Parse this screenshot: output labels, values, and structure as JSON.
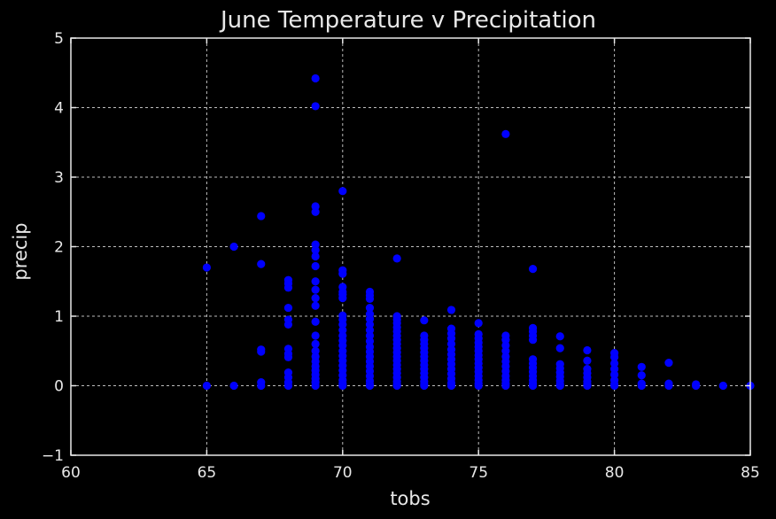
{
  "chart_data": {
    "type": "scatter",
    "title": "June Temperature v Precipitation",
    "xlabel": "tobs",
    "ylabel": "precip",
    "xlim": [
      60,
      85
    ],
    "ylim": [
      -1,
      5
    ],
    "xticks": [
      "60",
      "65",
      "70",
      "75",
      "80",
      "85"
    ],
    "yticks": [
      "−1",
      "0",
      "1",
      "2",
      "3",
      "4",
      "5"
    ],
    "grid": true,
    "marker_color": "#0000ff",
    "background": "#000000",
    "points": [
      [
        65,
        1.7
      ],
      [
        65,
        0.0
      ],
      [
        66,
        2.0
      ],
      [
        66,
        0.0
      ],
      [
        67,
        2.44
      ],
      [
        67,
        1.75
      ],
      [
        67,
        0.52
      ],
      [
        67,
        0.49
      ],
      [
        67,
        0.05
      ],
      [
        67,
        0.0
      ],
      [
        68,
        1.52
      ],
      [
        68,
        1.47
      ],
      [
        68,
        1.41
      ],
      [
        68,
        1.12
      ],
      [
        68,
        0.95
      ],
      [
        68,
        0.88
      ],
      [
        68,
        0.53
      ],
      [
        68,
        0.46
      ],
      [
        68,
        0.41
      ],
      [
        68,
        0.19
      ],
      [
        68,
        0.12
      ],
      [
        68,
        0.05
      ],
      [
        68,
        0.0
      ],
      [
        69,
        4.42
      ],
      [
        69,
        4.02
      ],
      [
        69,
        2.58
      ],
      [
        69,
        2.5
      ],
      [
        69,
        2.03
      ],
      [
        69,
        1.95
      ],
      [
        69,
        1.86
      ],
      [
        69,
        1.72
      ],
      [
        69,
        1.5
      ],
      [
        69,
        1.38
      ],
      [
        69,
        1.26
      ],
      [
        69,
        1.15
      ],
      [
        69,
        0.92
      ],
      [
        69,
        0.72
      ],
      [
        69,
        0.6
      ],
      [
        69,
        0.5
      ],
      [
        69,
        0.42
      ],
      [
        69,
        0.35
      ],
      [
        69,
        0.28
      ],
      [
        69,
        0.22
      ],
      [
        69,
        0.16
      ],
      [
        69,
        0.1
      ],
      [
        69,
        0.05
      ],
      [
        69,
        0.0
      ],
      [
        70,
        2.8
      ],
      [
        70,
        1.66
      ],
      [
        70,
        1.61
      ],
      [
        70,
        1.42
      ],
      [
        70,
        1.35
      ],
      [
        70,
        1.31
      ],
      [
        70,
        1.26
      ],
      [
        70,
        1.01
      ],
      [
        70,
        0.95
      ],
      [
        70,
        0.88
      ],
      [
        70,
        0.8
      ],
      [
        70,
        0.72
      ],
      [
        70,
        0.65
      ],
      [
        70,
        0.58
      ],
      [
        70,
        0.5
      ],
      [
        70,
        0.43
      ],
      [
        70,
        0.36
      ],
      [
        70,
        0.29
      ],
      [
        70,
        0.22
      ],
      [
        70,
        0.15
      ],
      [
        70,
        0.08
      ],
      [
        70,
        0.03
      ],
      [
        70,
        0.0
      ],
      [
        71,
        1.35
      ],
      [
        71,
        1.3
      ],
      [
        71,
        1.25
      ],
      [
        71,
        1.12
      ],
      [
        71,
        1.03
      ],
      [
        71,
        0.96
      ],
      [
        71,
        0.88
      ],
      [
        71,
        0.8
      ],
      [
        71,
        0.72
      ],
      [
        71,
        0.64
      ],
      [
        71,
        0.56
      ],
      [
        71,
        0.49
      ],
      [
        71,
        0.42
      ],
      [
        71,
        0.35
      ],
      [
        71,
        0.28
      ],
      [
        71,
        0.21
      ],
      [
        71,
        0.14
      ],
      [
        71,
        0.07
      ],
      [
        71,
        0.02
      ],
      [
        71,
        0.0
      ],
      [
        72,
        1.83
      ],
      [
        72,
        1.0
      ],
      [
        72,
        0.95
      ],
      [
        72,
        0.9
      ],
      [
        72,
        0.84
      ],
      [
        72,
        0.78
      ],
      [
        72,
        0.72
      ],
      [
        72,
        0.66
      ],
      [
        72,
        0.6
      ],
      [
        72,
        0.54
      ],
      [
        72,
        0.48
      ],
      [
        72,
        0.42
      ],
      [
        72,
        0.36
      ],
      [
        72,
        0.3
      ],
      [
        72,
        0.24
      ],
      [
        72,
        0.18
      ],
      [
        72,
        0.12
      ],
      [
        72,
        0.06
      ],
      [
        72,
        0.02
      ],
      [
        72,
        0.0
      ],
      [
        73,
        0.94
      ],
      [
        73,
        0.72
      ],
      [
        73,
        0.66
      ],
      [
        73,
        0.6
      ],
      [
        73,
        0.54
      ],
      [
        73,
        0.48
      ],
      [
        73,
        0.42
      ],
      [
        73,
        0.36
      ],
      [
        73,
        0.3
      ],
      [
        73,
        0.24
      ],
      [
        73,
        0.18
      ],
      [
        73,
        0.12
      ],
      [
        73,
        0.06
      ],
      [
        73,
        0.02
      ],
      [
        73,
        0.0
      ],
      [
        74,
        1.09
      ],
      [
        74,
        0.82
      ],
      [
        74,
        0.75
      ],
      [
        74,
        0.68
      ],
      [
        74,
        0.6
      ],
      [
        74,
        0.52
      ],
      [
        74,
        0.45
      ],
      [
        74,
        0.38
      ],
      [
        74,
        0.31
      ],
      [
        74,
        0.24
      ],
      [
        74,
        0.17
      ],
      [
        74,
        0.1
      ],
      [
        74,
        0.04
      ],
      [
        74,
        0.0
      ],
      [
        75,
        0.9
      ],
      [
        75,
        0.74
      ],
      [
        75,
        0.68
      ],
      [
        75,
        0.62
      ],
      [
        75,
        0.56
      ],
      [
        75,
        0.5
      ],
      [
        75,
        0.44
      ],
      [
        75,
        0.38
      ],
      [
        75,
        0.32
      ],
      [
        75,
        0.26
      ],
      [
        75,
        0.2
      ],
      [
        75,
        0.14
      ],
      [
        75,
        0.08
      ],
      [
        75,
        0.03
      ],
      [
        75,
        0.0
      ],
      [
        76,
        3.62
      ],
      [
        76,
        0.72
      ],
      [
        76,
        0.66
      ],
      [
        76,
        0.58
      ],
      [
        76,
        0.5
      ],
      [
        76,
        0.42
      ],
      [
        76,
        0.35
      ],
      [
        76,
        0.28
      ],
      [
        76,
        0.21
      ],
      [
        76,
        0.14
      ],
      [
        76,
        0.08
      ],
      [
        76,
        0.03
      ],
      [
        76,
        0.0
      ],
      [
        77,
        1.68
      ],
      [
        77,
        0.83
      ],
      [
        77,
        0.78
      ],
      [
        77,
        0.72
      ],
      [
        77,
        0.66
      ],
      [
        77,
        0.38
      ],
      [
        77,
        0.32
      ],
      [
        77,
        0.26
      ],
      [
        77,
        0.2
      ],
      [
        77,
        0.14
      ],
      [
        77,
        0.08
      ],
      [
        77,
        0.03
      ],
      [
        77,
        0.0
      ],
      [
        78,
        0.71
      ],
      [
        78,
        0.54
      ],
      [
        78,
        0.31
      ],
      [
        78,
        0.25
      ],
      [
        78,
        0.19
      ],
      [
        78,
        0.13
      ],
      [
        78,
        0.07
      ],
      [
        78,
        0.02
      ],
      [
        78,
        0.0
      ],
      [
        79,
        0.51
      ],
      [
        79,
        0.36
      ],
      [
        79,
        0.24
      ],
      [
        79,
        0.18
      ],
      [
        79,
        0.12
      ],
      [
        79,
        0.06
      ],
      [
        79,
        0.02
      ],
      [
        79,
        0.0
      ],
      [
        80,
        0.47
      ],
      [
        80,
        0.41
      ],
      [
        80,
        0.32
      ],
      [
        80,
        0.24
      ],
      [
        80,
        0.16
      ],
      [
        80,
        0.08
      ],
      [
        80,
        0.02
      ],
      [
        80,
        0.0
      ],
      [
        81,
        0.27
      ],
      [
        81,
        0.15
      ],
      [
        81,
        0.03
      ],
      [
        81,
        0.0
      ],
      [
        82,
        0.33
      ],
      [
        82,
        0.03
      ],
      [
        82,
        0.0
      ],
      [
        83,
        0.02
      ],
      [
        83,
        0.0
      ],
      [
        84,
        0.0
      ],
      [
        85,
        0.0
      ]
    ]
  }
}
